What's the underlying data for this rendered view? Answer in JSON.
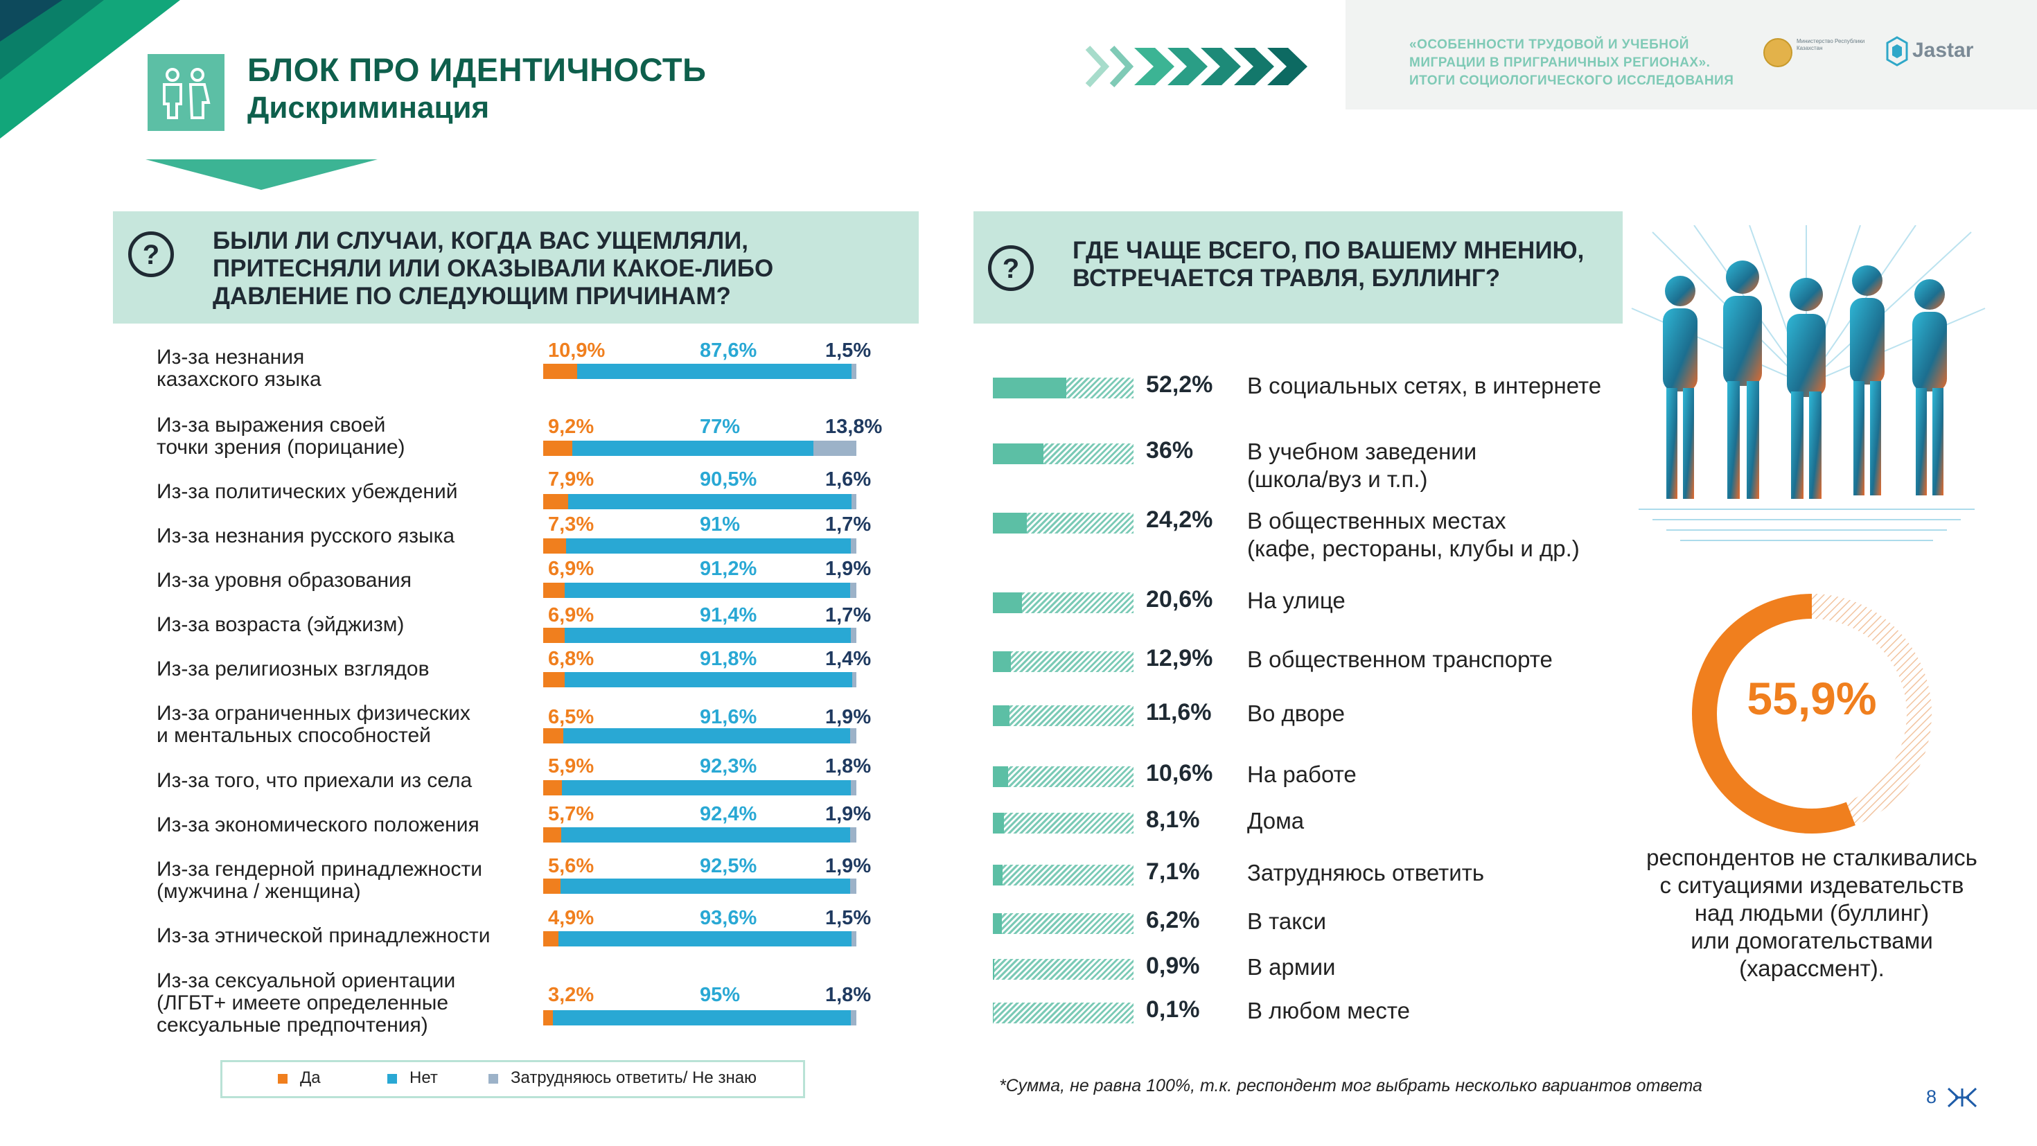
{
  "header": {
    "title": "БЛОК ПРО ИДЕНТИЧНОСТЬ",
    "subtitle": "Дискриминация",
    "report_lines": [
      "«ОСОБЕННОСТИ ТРУДОВОЙ И УЧЕБНОЙ",
      "МИГРАЦИИ В ПРИГРАНИЧНЫХ РЕГИОНАХ».",
      "ИТОГИ СОЦИОЛОГИЧЕСКОГО ИССЛЕДОВАНИЯ"
    ],
    "ministry_text": "Министерство Республики Казахстан",
    "jastar_logo": "Jastar"
  },
  "colors": {
    "yes": "#f07f1e",
    "no": "#29a8d4",
    "dont_know": "#9cb2c8",
    "teal": "#5cbfa5",
    "dark_green": "#0e5f4c"
  },
  "chart_data": [
    {
      "type": "bar",
      "stacked": true,
      "orientation": "horizontal",
      "title": "БЫЛИ ЛИ СЛУЧАИ, КОГДА ВАС УЩЕМЛЯЛИ, ПРИТЕСНЯЛИ ИЛИ ОКАЗЫВАЛИ КАКОЕ-ЛИБО ДАВЛЕНИЕ ПО СЛЕДУЮЩИМ ПРИЧИНАМ?",
      "title_lines": [
        "БЫЛИ ЛИ СЛУЧАИ, КОГДА ВАС УЩЕМЛЯЛИ,",
        "ПРИТЕСНЯЛИ ИЛИ ОКАЗЫВАЛИ КАКОЕ-ЛИБО",
        "ДАВЛЕНИЕ ПО СЛЕДУЮЩИМ ПРИЧИНАМ?"
      ],
      "legend": [
        "Да",
        "Нет",
        "Затрудняюсь ответить/ Не знаю"
      ],
      "legend_position": "bottom",
      "rows": [
        {
          "label": [
            "Из-за незнания",
            "казахского языка"
          ],
          "yes": 10.9,
          "no": 87.6,
          "dk": 1.5,
          "yes_text": "10,9%",
          "no_text": "87,6%",
          "dk_text": "1,5%"
        },
        {
          "label": [
            "Из-за выражения своей",
            "точки зрения (порицание)"
          ],
          "yes": 9.2,
          "no": 77,
          "dk": 13.8,
          "yes_text": "9,2%",
          "no_text": "77%",
          "dk_text": "13,8%"
        },
        {
          "label": [
            "Из-за политических убеждений"
          ],
          "yes": 7.9,
          "no": 90.5,
          "dk": 1.6,
          "yes_text": "7,9%",
          "no_text": "90,5%",
          "dk_text": "1,6%"
        },
        {
          "label": [
            "Из-за незнания русского языка"
          ],
          "yes": 7.3,
          "no": 91,
          "dk": 1.7,
          "yes_text": "7,3%",
          "no_text": "91%",
          "dk_text": "1,7%"
        },
        {
          "label": [
            "Из-за уровня образования"
          ],
          "yes": 6.9,
          "no": 91.2,
          "dk": 1.9,
          "yes_text": "6,9%",
          "no_text": "91,2%",
          "dk_text": "1,9%"
        },
        {
          "label": [
            "Из-за возраста (эйджизм)"
          ],
          "yes": 6.9,
          "no": 91.4,
          "dk": 1.7,
          "yes_text": "6,9%",
          "no_text": "91,4%",
          "dk_text": "1,7%"
        },
        {
          "label": [
            "Из-за религиозных взглядов"
          ],
          "yes": 6.8,
          "no": 91.8,
          "dk": 1.4,
          "yes_text": "6,8%",
          "no_text": "91,8%",
          "dk_text": "1,4%"
        },
        {
          "label": [
            "Из-за ограниченных физических",
            "и ментальных способностей"
          ],
          "yes": 6.5,
          "no": 91.6,
          "dk": 1.9,
          "yes_text": "6,5%",
          "no_text": "91,6%",
          "dk_text": "1,9%"
        },
        {
          "label": [
            "Из-за того, что приехали из села"
          ],
          "yes": 5.9,
          "no": 92.3,
          "dk": 1.8,
          "yes_text": "5,9%",
          "no_text": "92,3%",
          "dk_text": "1,8%"
        },
        {
          "label": [
            "Из-за экономического положения"
          ],
          "yes": 5.7,
          "no": 92.4,
          "dk": 1.9,
          "yes_text": "5,7%",
          "no_text": "92,4%",
          "dk_text": "1,9%"
        },
        {
          "label": [
            "Из-за гендерной принадлежности",
            "(мужчина / женщина)"
          ],
          "yes": 5.6,
          "no": 92.5,
          "dk": 1.9,
          "yes_text": "5,6%",
          "no_text": "92,5%",
          "dk_text": "1,9%"
        },
        {
          "label": [
            "Из-за этнической принадлежности"
          ],
          "yes": 4.9,
          "no": 93.6,
          "dk": 1.5,
          "yes_text": "4,9%",
          "no_text": "93,6%",
          "dk_text": "1,5%"
        },
        {
          "label": [
            "Из-за сексуальной ориентации",
            "(ЛГБТ+ имеете определенные",
            "сексуальные предпочтения)"
          ],
          "yes": 3.2,
          "no": 95,
          "dk": 1.8,
          "yes_text": "3,2%",
          "no_text": "95%",
          "dk_text": "1,8%"
        }
      ]
    },
    {
      "type": "bar",
      "orientation": "horizontal",
      "title": "ГДЕ ЧАЩЕ ВСЕГО, ПО ВАШЕМУ МНЕНИЮ, ВСТРЕЧАЕТСЯ ТРАВЛЯ, БУЛЛИНГ?",
      "title_lines": [
        "ГДЕ ЧАЩЕ ВСЕГО, ПО ВАШЕМУ МНЕНИЮ,",
        "ВСТРЕЧАЕТСЯ ТРАВЛЯ, БУЛЛИНГ?"
      ],
      "xlim": [
        0,
        100
      ],
      "rows": [
        {
          "label": [
            "В социальных сетях, в интернете"
          ],
          "value": 52.2,
          "text": "52,2%"
        },
        {
          "label": [
            "В учебном заведении",
            "(школа/вуз и т.п.)"
          ],
          "value": 36,
          "text": "36%"
        },
        {
          "label": [
            "В общественных местах",
            "(кафе, рестораны, клубы и др.)"
          ],
          "value": 24.2,
          "text": "24,2%"
        },
        {
          "label": [
            "На улице"
          ],
          "value": 20.6,
          "text": "20,6%"
        },
        {
          "label": [
            "В общественном транспорте"
          ],
          "value": 12.9,
          "text": "12,9%"
        },
        {
          "label": [
            "Во дворе"
          ],
          "value": 11.6,
          "text": "11,6%"
        },
        {
          "label": [
            "На работе"
          ],
          "value": 10.6,
          "text": "10,6%"
        },
        {
          "label": [
            "Дома"
          ],
          "value": 8.1,
          "text": "8,1%"
        },
        {
          "label": [
            "Затрудняюсь ответить"
          ],
          "value": 7.1,
          "text": "7,1%"
        },
        {
          "label": [
            "В такси"
          ],
          "value": 6.2,
          "text": "6,2%"
        },
        {
          "label": [
            "В армии"
          ],
          "value": 0.9,
          "text": "0,9%"
        },
        {
          "label": [
            "В любом месте"
          ],
          "value": 0.1,
          "text": "0,1%"
        }
      ]
    },
    {
      "type": "pie",
      "donut": true,
      "value": 55.9,
      "text": "55,9%",
      "caption_lines": [
        "респондентов не сталкивались",
        "с ситуациями издевательств",
        "над людьми (буллинг)",
        "или домогательствами",
        "(харассмент)."
      ]
    }
  ],
  "footnote": "*Сумма, не равна 100%, т.к. респондент мог выбрать несколько вариантов ответа",
  "page_number": "8"
}
